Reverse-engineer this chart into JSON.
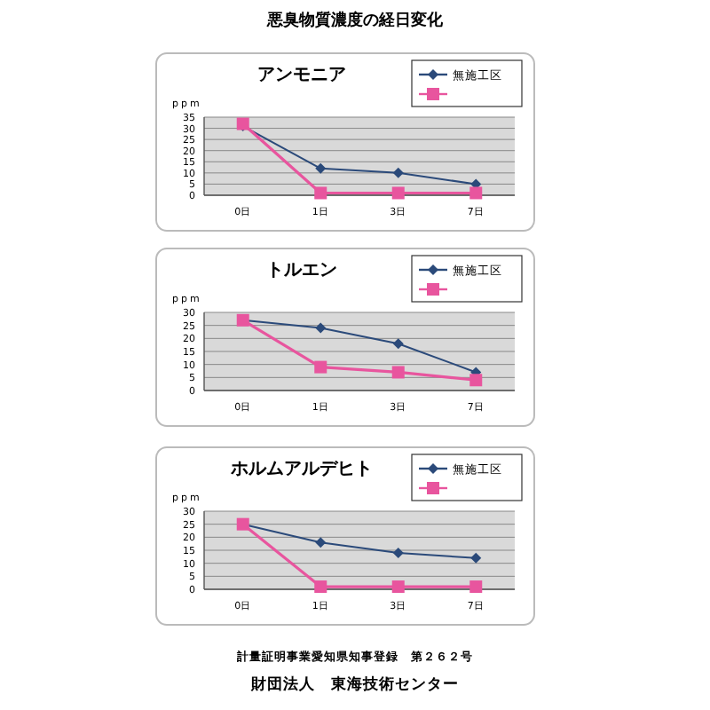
{
  "chart_data": [
    {
      "type": "line",
      "title": "アンモニア",
      "ylabel": "ppm",
      "annotations": [
        "悪臭物質濃度の経日変化"
      ],
      "categories": [
        "0日",
        "1日",
        "3日",
        "7日"
      ],
      "ylim": [
        0,
        35
      ],
      "yticks": [
        0,
        5,
        10,
        15,
        20,
        25,
        30,
        35
      ],
      "grid": "y",
      "legend": "top right",
      "series": [
        {
          "name": "無施工区",
          "color": "#2b4a7a",
          "marker": "diamond",
          "values": [
            31,
            12,
            10,
            5
          ]
        },
        {
          "color": "#e8559e",
          "marker": "square",
          "values": [
            32,
            1,
            1,
            1
          ]
        }
      ]
    },
    {
      "type": "line",
      "title": "トルエン",
      "ylabel": "ppm",
      "categories": [
        "0日",
        "1日",
        "3日",
        "7日"
      ],
      "ylim": [
        0,
        30
      ],
      "yticks": [
        0,
        5,
        10,
        15,
        20,
        25,
        30
      ],
      "grid": "y",
      "legend": "top right",
      "series": [
        {
          "name": "無施工区",
          "color": "#2b4a7a",
          "marker": "diamond",
          "values": [
            27,
            24,
            18,
            7
          ]
        },
        {
          "color": "#e8559e",
          "marker": "square",
          "values": [
            27,
            9,
            7,
            4
          ]
        }
      ]
    },
    {
      "type": "line",
      "title": "ホルムアルデヒト",
      "ylabel": "ppm",
      "annotations": [
        "計量証明事業愛知県知事登録　第２６２号",
        "財団法人　東海技術センター"
      ],
      "categories": [
        "0日",
        "1日",
        "3日",
        "7日"
      ],
      "ylim": [
        0,
        30
      ],
      "yticks": [
        0,
        5,
        10,
        15,
        20,
        25,
        30
      ],
      "grid": "y",
      "legend": "top right",
      "series": [
        {
          "name": "無施工区",
          "color": "#2b4a7a",
          "marker": "diamond",
          "values": [
            25,
            18,
            14,
            12
          ]
        },
        {
          "color": "#e8559e",
          "marker": "square",
          "values": [
            25,
            1,
            1,
            1
          ]
        }
      ]
    }
  ]
}
